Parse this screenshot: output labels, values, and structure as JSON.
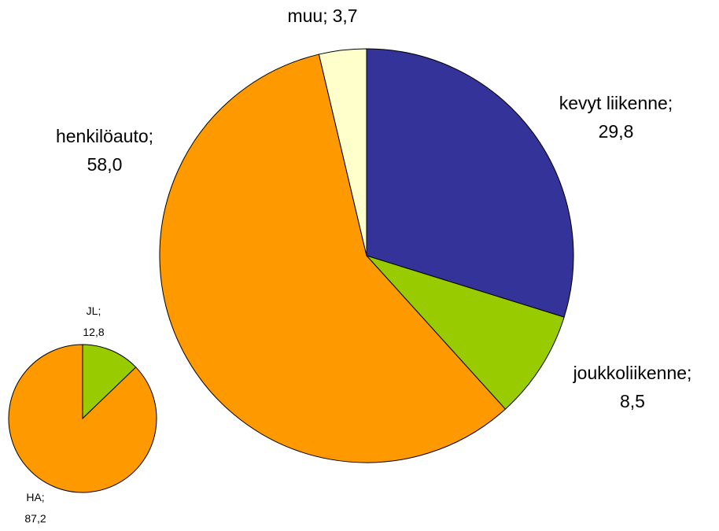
{
  "chart_data": [
    {
      "type": "pie",
      "separator": ";",
      "categories": [
        "kevyt liikenne",
        "joukkoliikenne",
        "henkilöauto",
        "muu"
      ],
      "values": [
        29.8,
        8.5,
        58.0,
        3.7
      ],
      "value_labels": [
        "29,8",
        "8,5",
        "58,0",
        "3,7"
      ],
      "colors": [
        "#333399",
        "#99cc00",
        "#ff9900",
        "#ffffcc"
      ]
    },
    {
      "type": "pie",
      "separator": ";",
      "categories": [
        "JL",
        "HA"
      ],
      "values": [
        12.8,
        87.2
      ],
      "value_labels": [
        "12,8",
        "87,2"
      ],
      "colors": [
        "#99cc00",
        "#ff9900"
      ]
    }
  ]
}
